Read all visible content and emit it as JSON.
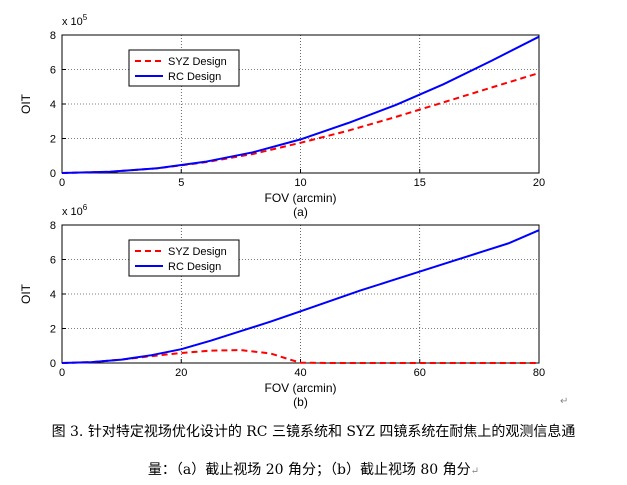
{
  "caption": {
    "line1": "图 3. 针对特定视场优化设计的 RC 三镜系统和 SYZ 四镜系统在耐焦上的观测信息通",
    "line2": "量：（a）截止视场 20 角分；（b）截止视场 80 角分"
  },
  "chart_data": [
    {
      "type": "line",
      "xlabel": "FOV (arcmin)",
      "ylabel": "OIT",
      "sublabel": "(a)",
      "multiplier_base": "x 10",
      "multiplier_exp": "5",
      "xlim": [
        0,
        20
      ],
      "ylim": [
        0,
        8
      ],
      "xticks": [
        "0",
        "5",
        "10",
        "15",
        "20"
      ],
      "yticks": [
        "0",
        "2",
        "4",
        "6",
        "8"
      ],
      "grid": true,
      "legend_position": "top-left",
      "series": [
        {
          "name": "SYZ Design",
          "color": "#ff0000",
          "style": "dashed",
          "x": [
            0,
            2,
            4,
            6,
            8,
            10,
            12,
            14,
            16,
            18,
            20
          ],
          "values": [
            0,
            0.07,
            0.27,
            0.62,
            1.1,
            1.75,
            2.45,
            3.25,
            4.1,
            4.95,
            5.8
          ]
        },
        {
          "name": "RC Design",
          "color": "#0000ff",
          "style": "solid",
          "x": [
            0,
            2,
            4,
            6,
            8,
            10,
            12,
            14,
            16,
            18,
            20
          ],
          "values": [
            0,
            0.07,
            0.28,
            0.65,
            1.2,
            1.95,
            2.9,
            3.95,
            5.15,
            6.5,
            7.9
          ]
        }
      ]
    },
    {
      "type": "line",
      "xlabel": "FOV (arcmin)",
      "ylabel": "OIT",
      "sublabel": "(b)",
      "multiplier_base": "x 10",
      "multiplier_exp": "6",
      "xlim": [
        0,
        80
      ],
      "ylim": [
        0,
        8
      ],
      "xticks": [
        "0",
        "20",
        "40",
        "60",
        "80"
      ],
      "yticks": [
        "0",
        "2",
        "4",
        "6",
        "8"
      ],
      "grid": true,
      "legend_position": "top-left",
      "series": [
        {
          "name": "SYZ Design",
          "color": "#ff0000",
          "style": "dashed",
          "x": [
            0,
            5,
            10,
            15,
            20,
            25,
            30,
            35,
            38,
            40,
            45,
            50,
            60,
            70,
            80
          ],
          "values": [
            0,
            0.05,
            0.2,
            0.4,
            0.58,
            0.72,
            0.75,
            0.55,
            0.22,
            0.02,
            0,
            0,
            0,
            0,
            0
          ]
        },
        {
          "name": "RC Design",
          "color": "#0000ff",
          "style": "solid",
          "x": [
            0,
            5,
            10,
            15,
            20,
            25,
            30,
            35,
            40,
            45,
            50,
            55,
            60,
            65,
            70,
            75,
            80
          ],
          "values": [
            0,
            0.05,
            0.2,
            0.45,
            0.8,
            1.3,
            1.85,
            2.4,
            3.0,
            3.6,
            4.2,
            4.75,
            5.3,
            5.85,
            6.4,
            6.95,
            7.7
          ]
        }
      ]
    }
  ],
  "marks": {
    "return_symbol": "↵"
  }
}
